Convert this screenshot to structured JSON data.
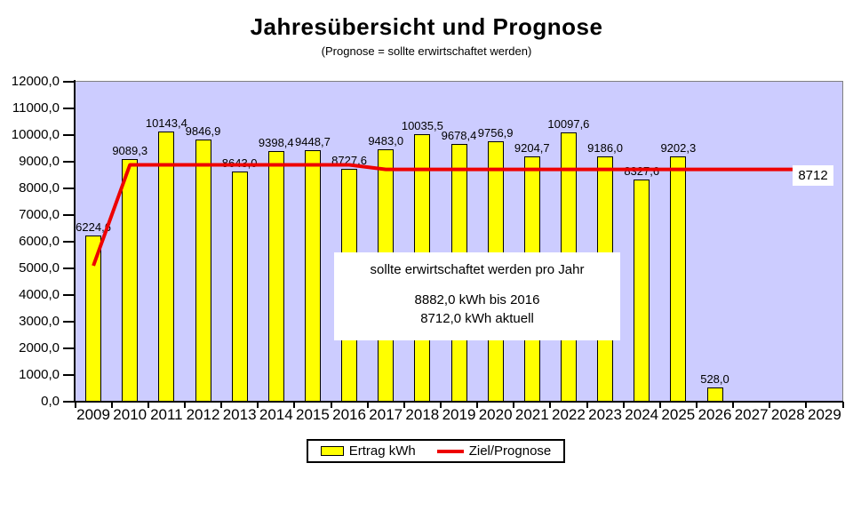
{
  "chart": {
    "title": "Jahresübersicht und Prognose",
    "subtitle": "(Prognose = sollte erwirtschaftet werden)",
    "end_label": "8712"
  },
  "annotation": {
    "line1": "sollte erwirtschaftet werden pro Jahr",
    "line2": "8882,0 kWh bis 2016",
    "line3": "8712,0 kWh aktuell"
  },
  "legend": {
    "items": [
      {
        "label": "Ertrag kWh",
        "type": "bar",
        "color": "#FFFF00"
      },
      {
        "label": "Ziel/Prognose",
        "type": "line",
        "color": "#EE0000"
      }
    ]
  },
  "chart_data": {
    "type": "bar",
    "title": "Jahresübersicht und Prognose",
    "subtitle": "(Prognose = sollte erwirtschaftet werden)",
    "categories": [
      "2009",
      "2010",
      "2011",
      "2012",
      "2013",
      "2014",
      "2015",
      "2016",
      "2017",
      "2018",
      "2019",
      "2020",
      "2021",
      "2022",
      "2023",
      "2024",
      "2025",
      "2026",
      "2027",
      "2028",
      "2029"
    ],
    "series": [
      {
        "name": "Ertrag kWh",
        "type": "bar",
        "color": "#FFFF00",
        "values": [
          6224.6,
          9089.3,
          10143.4,
          9846.9,
          8643.0,
          9398.4,
          9448.7,
          8727.6,
          9483.0,
          10035.5,
          9678.4,
          9756.9,
          9204.7,
          10097.6,
          9186.0,
          8327.6,
          9202.3,
          528.0,
          null,
          null,
          null
        ],
        "labels": [
          "6224,6",
          "9089,3",
          "10143,4",
          "9846,9",
          "8643,0",
          "9398,4",
          "9448,7",
          "8727,6",
          "9483,0",
          "10035,5",
          "9678,4",
          "9756,9",
          "9204,7",
          "10097,6",
          "9186,0",
          "8327,6",
          "9202,3",
          "528,0",
          null,
          null,
          null
        ]
      },
      {
        "name": "Ziel/Prognose",
        "type": "line",
        "color": "#EE0000",
        "points": [
          {
            "x": 2009,
            "y": 5100
          },
          {
            "x": 2010,
            "y": 8882
          },
          {
            "x": 2016,
            "y": 8882
          },
          {
            "x": 2017,
            "y": 8712
          },
          {
            "x": 2028.15,
            "y": 8712
          }
        ],
        "end_label": "8712"
      }
    ],
    "ylim": [
      0,
      12000
    ],
    "ytick_step": 1000,
    "ytick_labels": [
      "0,0",
      "1000,0",
      "2000,0",
      "3000,0",
      "4000,0",
      "5000,0",
      "6000,0",
      "7000,0",
      "8000,0",
      "9000,0",
      "10000,0",
      "11000,0",
      "12000,0"
    ],
    "grid": false,
    "plot_bg": "#CCCCFF",
    "legend_position": "bottom",
    "annotation_box": [
      "sollte erwirtschaftet werden pro Jahr",
      "8882,0 kWh bis 2016",
      "8712,0 kWh aktuell"
    ]
  }
}
